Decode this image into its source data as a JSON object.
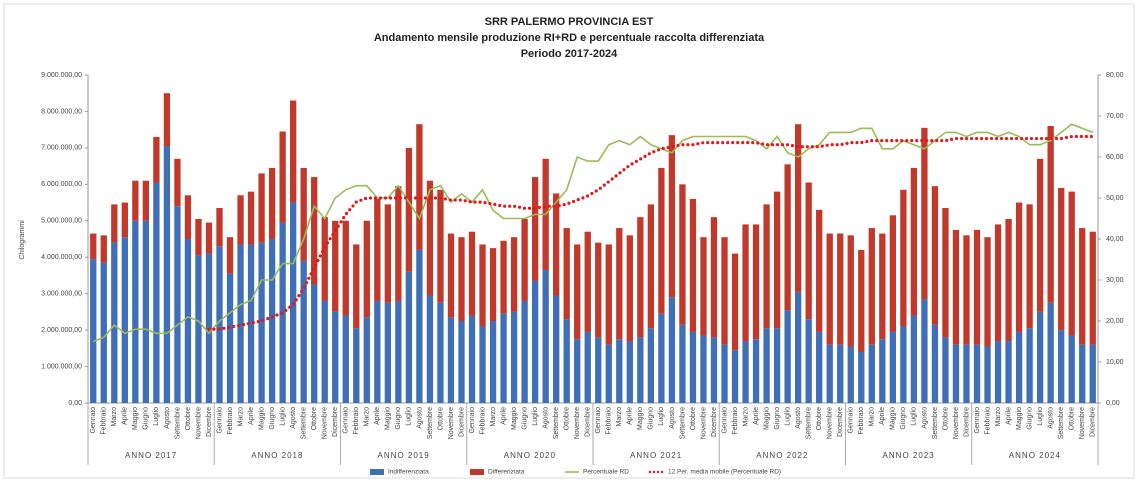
{
  "chart_data": {
    "type": "bar",
    "title": "SRR PALERMO PROVINCIA EST",
    "subtitle": "Andamento mensile produzione RI+RD e percentuale raccolta differenziata",
    "subtitle2": "Periodo 2017-2024",
    "ylabel": "Chilogrammi",
    "stacked": true,
    "grid": false,
    "legend": "bottom",
    "groups": [
      "ANNO 2017",
      "ANNO 2018",
      "ANNO 2019",
      "ANNO 2020",
      "ANNO 2021",
      "ANNO 2022",
      "ANNO 2023",
      "ANNO 2024"
    ],
    "categories": [
      "Gennaio",
      "Febbraio",
      "Marzo",
      "Aprile",
      "Maggio",
      "Giugno",
      "Luglio",
      "Agosto",
      "Settembre",
      "Ottobre",
      "Novembre",
      "Dicembre",
      "Gennaio",
      "Febbraio",
      "Marzo",
      "Aprile",
      "Maggio",
      "Giugno",
      "Luglio",
      "Agosto",
      "Settembre",
      "Ottobre",
      "Novembre",
      "Dicembre",
      "Gennaio",
      "Febbraio",
      "Marzo",
      "Aprile",
      "Maggio",
      "Giugno",
      "Luglio",
      "Agosto",
      "Settembre",
      "Ottobre",
      "Novembre",
      "Dicembre",
      "Gennaio",
      "Febbraio",
      "Marzo",
      "Aprile",
      "Maggio",
      "Giugno",
      "Luglio",
      "Agosto",
      "Settembre",
      "Ottobre",
      "Novembre",
      "Dicembre",
      "Gennaio",
      "Febbraio",
      "Marzo",
      "Aprile",
      "Maggio",
      "Giugno",
      "Luglio",
      "Agosto",
      "Settembre",
      "Ottobre",
      "Novembre",
      "Dicembre",
      "Gennaio",
      "Febbraio",
      "Marzo",
      "Aprile",
      "Maggio",
      "Giugno",
      "Luglio",
      "Agosto",
      "Settembre",
      "Ottobre",
      "Novembre",
      "Dicembre",
      "Gennaio",
      "Febbraio",
      "Marzo",
      "Aprile",
      "Maggio",
      "Giugno",
      "Luglio",
      "Agosto",
      "Settembre",
      "Ottobre",
      "Novembre",
      "Dicembre",
      "Gennaio",
      "Febbraio",
      "Marzo",
      "Aprile",
      "Maggio",
      "Giugno",
      "Luglio",
      "Agosto",
      "Settembre",
      "Ottobre",
      "Novembre",
      "Dicembre"
    ],
    "ylim": [
      0,
      9000000
    ],
    "yticks": [
      {
        "value": 0,
        "label": "0,00"
      },
      {
        "value": 1000000,
        "label": "1.000.000,00"
      },
      {
        "value": 2000000,
        "label": "2.000.000,00"
      },
      {
        "value": 3000000,
        "label": "3.000.000,00"
      },
      {
        "value": 4000000,
        "label": "4.000.000,00"
      },
      {
        "value": 5000000,
        "label": "5.000.000,00"
      },
      {
        "value": 6000000,
        "label": "6.000.000,00"
      },
      {
        "value": 7000000,
        "label": "7.000.000,00"
      },
      {
        "value": 8000000,
        "label": "8.000.000,00"
      },
      {
        "value": 9000000,
        "label": "9.000.000,00"
      }
    ],
    "y2lim": [
      0,
      80
    ],
    "y2ticks": [
      {
        "value": 0,
        "label": "0,00"
      },
      {
        "value": 10,
        "label": "10,00"
      },
      {
        "value": 20,
        "label": "20,00"
      },
      {
        "value": 30,
        "label": "30,00"
      },
      {
        "value": 40,
        "label": "40,00"
      },
      {
        "value": 50,
        "label": "50,00"
      },
      {
        "value": 60,
        "label": "60,00"
      },
      {
        "value": 70,
        "label": "70,00"
      },
      {
        "value": 80,
        "label": "80,00"
      }
    ],
    "series": [
      {
        "name": "Indifferenziata",
        "type": "bar",
        "color": "#3f6fb6",
        "values": [
          3950000,
          3850000,
          4400000,
          4550000,
          5000000,
          5000000,
          6050000,
          7050000,
          5400000,
          4500000,
          4050000,
          4100000,
          4300000,
          3550000,
          4350000,
          4350000,
          4400000,
          4500000,
          4950000,
          5500000,
          3900000,
          3250000,
          2800000,
          2500000,
          2400000,
          2050000,
          2350000,
          2800000,
          2750000,
          2800000,
          3600000,
          4200000,
          2950000,
          2750000,
          2350000,
          2250000,
          2400000,
          2100000,
          2250000,
          2450000,
          2500000,
          2800000,
          3350000,
          3650000,
          2950000,
          2300000,
          1750000,
          1950000,
          1800000,
          1600000,
          1750000,
          1700000,
          1800000,
          2050000,
          2450000,
          2900000,
          2150000,
          1950000,
          1850000,
          1800000,
          1600000,
          1450000,
          1700000,
          1750000,
          2050000,
          2050000,
          2550000,
          3050000,
          2300000,
          1950000,
          1600000,
          1600000,
          1550000,
          1400000,
          1600000,
          1750000,
          1950000,
          2100000,
          2400000,
          2850000,
          2150000,
          1800000,
          1600000,
          1600000,
          1600000,
          1550000,
          1700000,
          1700000,
          1950000,
          2050000,
          2500000,
          2750000,
          2000000,
          1850000,
          1600000,
          1600000
        ]
      },
      {
        "name": "Differenziata",
        "type": "bar",
        "color": "#c0392b",
        "values": [
          700000,
          750000,
          1050000,
          950000,
          1100000,
          1100000,
          1250000,
          1450000,
          1300000,
          1200000,
          1000000,
          850000,
          1050000,
          1000000,
          1350000,
          1450000,
          1900000,
          1950000,
          2500000,
          2800000,
          2550000,
          2950000,
          2300000,
          2500000,
          2600000,
          2300000,
          2650000,
          2800000,
          2700000,
          3150000,
          3400000,
          3450000,
          3150000,
          3100000,
          2300000,
          2300000,
          2300000,
          2250000,
          2000000,
          2000000,
          2050000,
          2250000,
          2850000,
          3050000,
          2800000,
          2500000,
          2600000,
          2750000,
          2600000,
          2750000,
          3050000,
          2900000,
          3300000,
          3400000,
          4000000,
          4450000,
          3850000,
          3650000,
          2700000,
          3300000,
          2950000,
          2650000,
          3200000,
          3150000,
          3400000,
          3750000,
          4000000,
          4600000,
          3750000,
          3350000,
          3050000,
          3050000,
          3050000,
          2800000,
          3200000,
          2900000,
          3200000,
          3750000,
          4050000,
          4700000,
          3800000,
          3550000,
          3150000,
          3000000,
          3150000,
          3000000,
          3200000,
          3350000,
          3550000,
          3400000,
          4200000,
          4850000,
          3900000,
          3950000,
          3200000,
          3100000
        ]
      },
      {
        "name": "Percentuale RD",
        "type": "line",
        "axis": "y2",
        "color": "#9bbb59",
        "values": [
          15,
          16,
          19,
          17,
          18,
          18,
          17,
          17,
          19,
          21,
          20,
          17,
          20,
          22,
          24,
          25,
          30,
          30,
          34,
          34,
          40,
          48,
          45,
          50,
          52,
          53,
          53,
          50,
          50,
          53,
          49,
          45,
          52,
          53,
          49,
          51,
          49,
          52,
          47,
          45,
          45,
          45,
          46,
          46,
          49,
          52,
          60,
          59,
          59,
          63,
          64,
          63,
          65,
          63,
          62,
          61,
          64,
          65,
          65,
          65,
          65,
          65,
          65,
          64,
          62,
          65,
          61,
          60,
          62,
          63,
          66,
          66,
          66,
          67,
          67,
          62,
          62,
          64,
          63,
          62,
          64,
          66,
          66,
          65,
          66,
          66,
          65,
          66,
          65,
          63,
          63,
          64,
          66,
          68,
          67,
          66
        ]
      },
      {
        "name": "12 Per. media mobile (Percentuale RD)",
        "type": "line",
        "style": "dotted",
        "axis": "y2",
        "color": "#e0191b",
        "values": [
          null,
          null,
          null,
          null,
          null,
          null,
          null,
          null,
          null,
          null,
          null,
          18,
          18,
          18.5,
          19,
          19.5,
          20,
          21,
          22,
          24,
          28,
          33,
          38,
          42,
          46,
          49,
          50,
          50,
          50,
          50,
          50,
          50,
          50,
          50,
          49.5,
          49.5,
          49,
          49,
          48.5,
          48,
          48,
          47.5,
          47.5,
          48,
          48,
          48.5,
          49.5,
          50.5,
          52,
          54,
          56,
          58,
          59.5,
          61,
          62,
          62.5,
          63,
          63,
          63.5,
          63.5,
          63.5,
          63.5,
          63.5,
          63.5,
          63,
          63,
          63,
          62.5,
          62.5,
          62.5,
          63,
          63,
          63.5,
          63.5,
          64,
          64,
          64,
          64,
          64,
          64,
          64,
          64,
          64.5,
          64.5,
          64.5,
          64.5,
          64.5,
          64.5,
          64.5,
          64.5,
          64.5,
          64.5,
          64.5,
          65,
          65,
          65
        ]
      }
    ]
  }
}
